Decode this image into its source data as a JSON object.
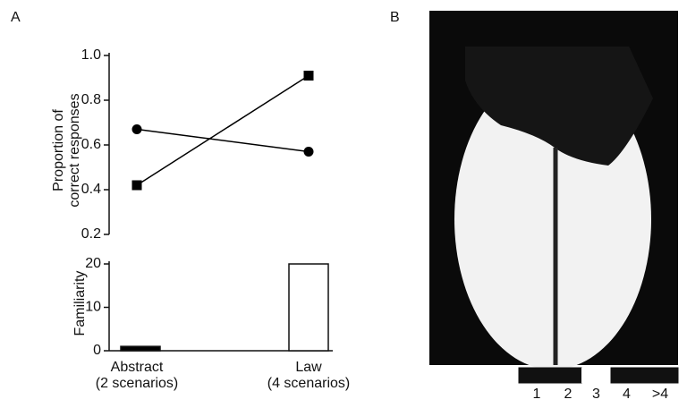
{
  "panel_labels": {
    "a": "A",
    "b": "B"
  },
  "chart_data": [
    {
      "type": "line",
      "ylabel": "Proportion of\ncorrect responses",
      "categories": [
        null,
        null
      ],
      "series": [
        {
          "marker": "circle",
          "color": "#000000",
          "values": [
            0.67,
            0.57
          ]
        },
        {
          "marker": "square",
          "color": "#000000",
          "values": [
            0.42,
            0.91
          ]
        }
      ],
      "ylim": [
        0.2,
        1
      ],
      "yticks": [
        0.2,
        0.4,
        0.6,
        0.8,
        {
          "value": 1,
          "label": "1.0"
        }
      ]
    },
    {
      "type": "bar",
      "ylabel": "Familiarity",
      "categories": [
        "Abstract\n(2 scenarios)",
        "Law\n(4 scenarios)"
      ],
      "values": [
        1,
        20
      ],
      "colors": [
        "#000000",
        "#ffffff"
      ],
      "ylim": [
        0,
        20
      ],
      "yticks": [
        0,
        10,
        20
      ]
    }
  ],
  "scale": [
    {
      "label": "1",
      "color": "#111111"
    },
    {
      "label": "2",
      "color": "#111111"
    },
    {
      "label": "3",
      "color": "#ffffff"
    },
    {
      "label": "4",
      "color": "#111111"
    },
    {
      "label": ">4",
      "color": "#111111"
    }
  ]
}
